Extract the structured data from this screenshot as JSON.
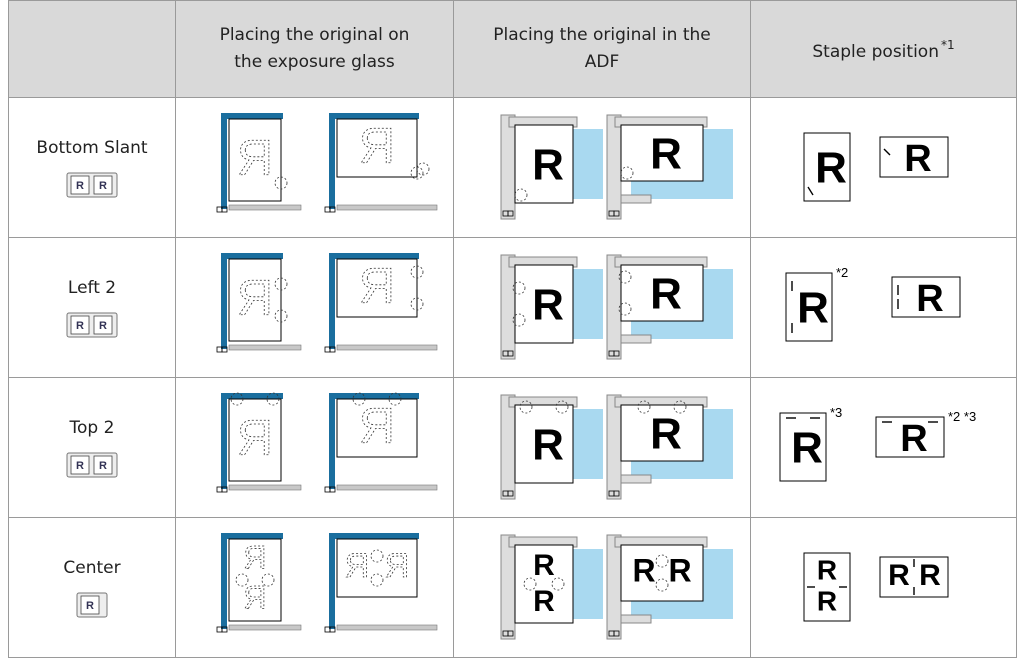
{
  "header": {
    "columns": [
      {
        "lines": [
          "Placing the original on",
          "the exposure glass"
        ]
      },
      {
        "lines": [
          "Placing the original in the",
          "ADF"
        ]
      },
      {
        "text": "Staple position",
        "note": "*1"
      }
    ]
  },
  "illustration_letter": "R",
  "rows": [
    {
      "label": "Bottom Slant",
      "staple_notes": [
        null,
        null
      ]
    },
    {
      "label": "Left 2",
      "staple_notes": [
        "*2",
        null
      ]
    },
    {
      "label": "Top 2",
      "staple_notes": [
        "*3",
        "*2 *3"
      ]
    },
    {
      "label": "Center",
      "staple_notes": [
        null,
        null
      ]
    }
  ]
}
